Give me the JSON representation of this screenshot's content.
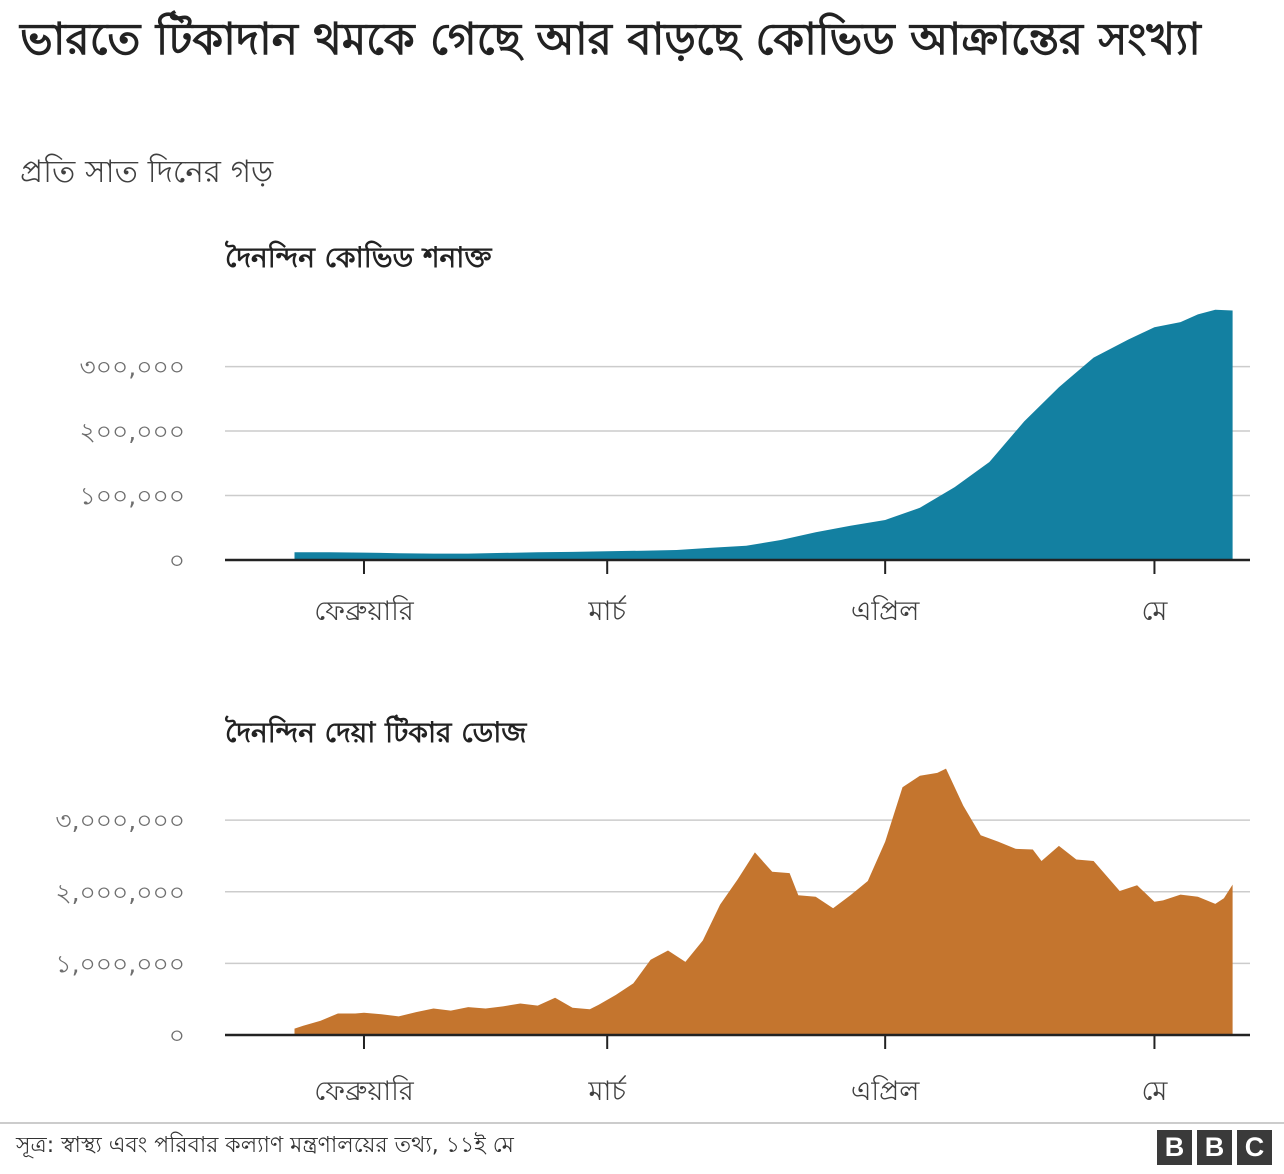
{
  "header": {
    "title": "ভারতে টিকাদান থমকে গেছে আর বাড়ছে কোভিড আক্রান্তের সংখ্যা",
    "subtitle": "প্রতি সাত দিনের গড়"
  },
  "footer": {
    "source": "সূত্র: স্বাস্থ্য এবং পরিবার কল্যাণ মন্ত্রণালয়ের তথ্য, ১১ই মে",
    "logo_letters": [
      "B",
      "B",
      "C"
    ]
  },
  "chart_data": [
    {
      "type": "area",
      "title": "দৈনন্দিন কোভিড শনাক্ত",
      "color": "#1380a1",
      "ylim": [
        0,
        380000
      ],
      "yticks": [
        0,
        100000,
        200000,
        300000
      ],
      "ytick_labels": [
        "০",
        "১০০,০০০",
        "২০০,০০০",
        "৩০০,০০০"
      ],
      "xlim": [
        -16,
        102
      ],
      "xticks": [
        0,
        28,
        60,
        91
      ],
      "xtick_labels": [
        "ফেব্রুয়ারি",
        "মার্চ",
        "এপ্রিল",
        "মে"
      ],
      "grid": true,
      "x": [
        -8,
        -4,
        0,
        4,
        8,
        12,
        16,
        20,
        24,
        28,
        32,
        36,
        40,
        44,
        48,
        52,
        56,
        60,
        64,
        68,
        72,
        76,
        80,
        84,
        88,
        91,
        94,
        96,
        98,
        100
      ],
      "values": [
        12000,
        12000,
        11500,
        10500,
        10000,
        10000,
        11000,
        12000,
        12500,
        13500,
        14500,
        15500,
        19000,
        22000,
        31000,
        43000,
        53000,
        62000,
        81000,
        113000,
        152000,
        215000,
        268000,
        314000,
        342000,
        361000,
        369000,
        381000,
        388000,
        387000
      ]
    },
    {
      "type": "area",
      "title": "দৈনন্দিন দেয়া টিকার ডোজ",
      "color": "#c4752e",
      "ylim": [
        0,
        3700000
      ],
      "yticks": [
        0,
        1000000,
        2000000,
        3000000
      ],
      "ytick_labels": [
        "০",
        "১,০০০,০০০",
        "২,০০০,০০০",
        "৩,০০০,০০০"
      ],
      "xlim": [
        -16,
        102
      ],
      "xticks": [
        0,
        28,
        60,
        91
      ],
      "xtick_labels": [
        "ফেব্রুয়ারি",
        "মার্চ",
        "এপ্রিল",
        "মে"
      ],
      "grid": true,
      "x": [
        -8,
        -7,
        -5,
        -3,
        -1,
        0,
        2,
        4,
        6,
        8,
        10,
        12,
        14,
        16,
        18,
        20,
        22,
        24,
        26,
        27,
        29,
        31,
        33,
        35,
        37,
        39,
        41,
        43,
        45,
        47,
        49,
        50,
        52,
        54,
        56,
        58,
        60,
        62,
        64,
        66,
        67,
        69,
        71,
        73,
        75,
        77,
        78,
        80,
        82,
        84,
        85,
        87,
        89,
        91,
        92,
        94,
        96,
        98,
        99,
        100
      ],
      "values": [
        90000,
        130000,
        200000,
        300000,
        300000,
        310000,
        290000,
        260000,
        320000,
        370000,
        340000,
        390000,
        370000,
        400000,
        440000,
        410000,
        520000,
        380000,
        360000,
        420000,
        560000,
        720000,
        1050000,
        1180000,
        1020000,
        1320000,
        1820000,
        2170000,
        2550000,
        2280000,
        2260000,
        1950000,
        1930000,
        1770000,
        1950000,
        2150000,
        2700000,
        3460000,
        3620000,
        3660000,
        3720000,
        3200000,
        2790000,
        2700000,
        2600000,
        2590000,
        2430000,
        2640000,
        2450000,
        2430000,
        2290000,
        2010000,
        2090000,
        1860000,
        1880000,
        1960000,
        1930000,
        1830000,
        1910000,
        2100000
      ]
    }
  ]
}
